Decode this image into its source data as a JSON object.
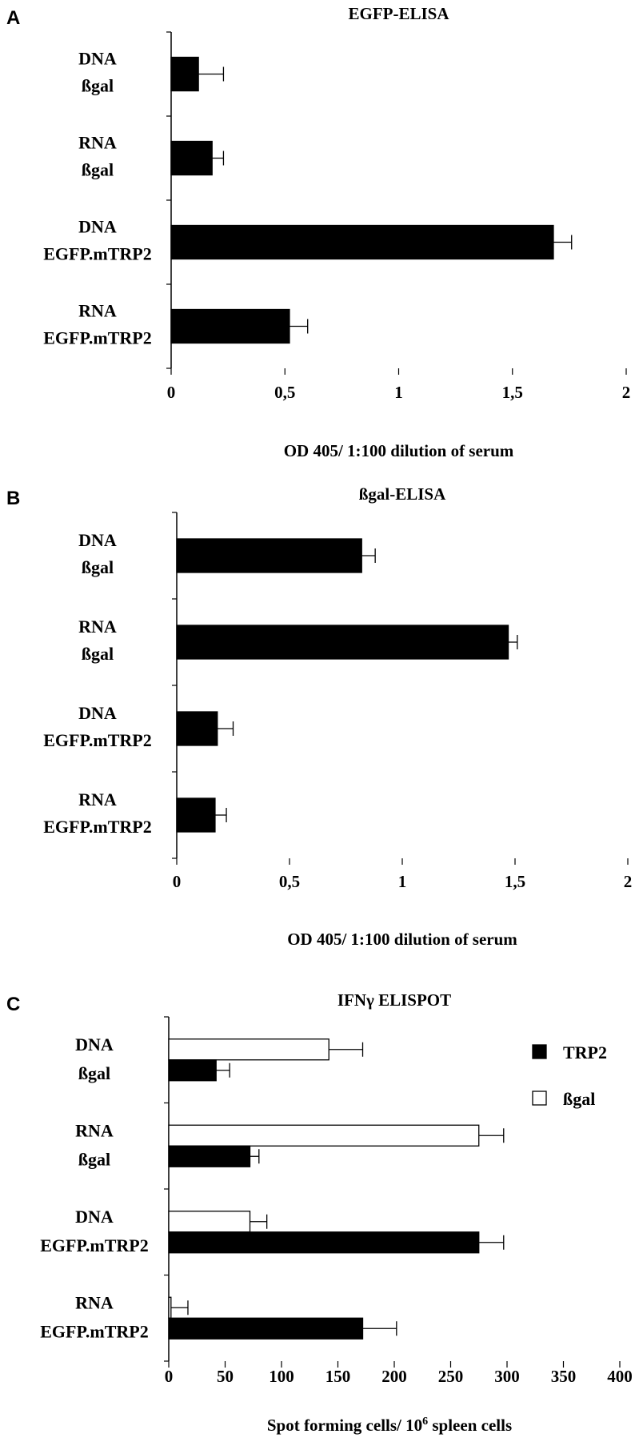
{
  "chart_data": [
    {
      "panel": "A",
      "type": "bar",
      "title": "EGFP-ELISA",
      "xlabel": "OD 405/ 1:100 dilution of serum",
      "categories": [
        [
          "DNA",
          "ßgal"
        ],
        [
          "RNA",
          "ßgal"
        ],
        [
          "DNA",
          "EGFP.mTRP2"
        ],
        [
          "RNA",
          "EGFP.mTRP2"
        ]
      ],
      "series": [
        {
          "values": [
            0.12,
            0.18,
            1.68,
            0.52
          ],
          "errors": [
            0.11,
            0.05,
            0.08,
            0.08
          ],
          "color": "#000000"
        }
      ],
      "xlim": [
        0,
        2
      ],
      "ticks": [
        0,
        0.5,
        1,
        1.5,
        2
      ],
      "tick_labels": [
        "0",
        "0,5",
        "1",
        "1,5",
        "2"
      ]
    },
    {
      "panel": "B",
      "type": "bar",
      "title": "ßgal-ELISA",
      "xlabel": "OD 405/ 1:100 dilution of serum",
      "categories": [
        [
          "DNA",
          "ßgal"
        ],
        [
          "RNA",
          "ßgal"
        ],
        [
          "DNA",
          "EGFP.mTRP2"
        ],
        [
          "RNA",
          "EGFP.mTRP2"
        ]
      ],
      "series": [
        {
          "values": [
            0.82,
            1.47,
            0.18,
            0.17
          ],
          "errors": [
            0.06,
            0.04,
            0.07,
            0.05
          ],
          "color": "#000000"
        }
      ],
      "xlim": [
        0,
        2
      ],
      "ticks": [
        0,
        0.5,
        1,
        1.5,
        2
      ],
      "tick_labels": [
        "0",
        "0,5",
        "1",
        "1,5",
        "2"
      ]
    },
    {
      "panel": "C",
      "type": "bar",
      "title": "IFNγ ELISPOT",
      "xlabel_main": "Spot forming cells/ 10",
      "xlabel_sup": "6",
      "xlabel_tail": " spleen cells",
      "categories": [
        [
          "DNA",
          "ßgal"
        ],
        [
          "RNA",
          "ßgal"
        ],
        [
          "DNA",
          "EGFP.mTRP2"
        ],
        [
          "RNA",
          "EGFP.mTRP2"
        ]
      ],
      "series": [
        {
          "name": "ßgal",
          "values": [
            142,
            275,
            72,
            2
          ],
          "errors": [
            30,
            22,
            15,
            15
          ],
          "color": "#ffffff"
        },
        {
          "name": "TRP2",
          "values": [
            42,
            72,
            275,
            172
          ],
          "errors": [
            12,
            8,
            22,
            30
          ],
          "color": "#000000"
        }
      ],
      "legend_order": [
        "TRP2",
        "ßgal"
      ],
      "legend_position": "right",
      "xlim": [
        0,
        400
      ],
      "ticks": [
        0,
        50,
        100,
        150,
        200,
        250,
        300,
        350,
        400
      ],
      "tick_labels": [
        "0",
        "50",
        "100",
        "150",
        "200",
        "250",
        "300",
        "350",
        "400"
      ]
    }
  ]
}
